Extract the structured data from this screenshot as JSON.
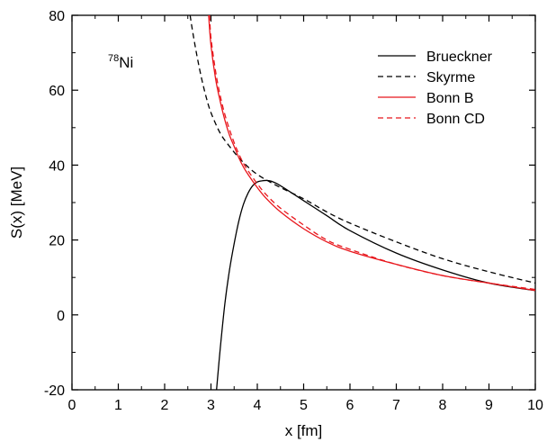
{
  "chart_data": {
    "type": "line",
    "title": "",
    "annotation": {
      "nucleus_mass": "78",
      "nucleus_symbol": "Ni"
    },
    "xlabel": "x [fm]",
    "ylabel": "S(x) [MeV]",
    "xlim": [
      0,
      10
    ],
    "ylim": [
      -20,
      80
    ],
    "xticks": [
      0,
      1,
      2,
      3,
      4,
      5,
      6,
      7,
      8,
      9,
      10
    ],
    "yticks": [
      -20,
      0,
      20,
      40,
      60,
      80
    ],
    "grid": false,
    "legend_position": "top-right",
    "series": [
      {
        "name": "Brueckner",
        "color": "#000000",
        "dash": "solid",
        "x": [
          3.12,
          3.2,
          3.3,
          3.4,
          3.5,
          3.6,
          3.7,
          3.8,
          3.9,
          4.0,
          4.1,
          4.2,
          4.3,
          4.5,
          5.0,
          5.5,
          6.0,
          7.0,
          8.0,
          9.0,
          10.0
        ],
        "y": [
          -20,
          -9,
          3,
          12,
          19,
          25,
          29.5,
          32.5,
          34.5,
          35.5,
          35.8,
          35.9,
          35.7,
          34.5,
          30.5,
          26.5,
          22.5,
          16.5,
          12,
          8.5,
          6.5
        ]
      },
      {
        "name": "Skyrme",
        "color": "#000000",
        "dash": "dashed",
        "x": [
          2.55,
          2.6,
          2.7,
          2.8,
          2.9,
          3.0,
          3.2,
          3.4,
          3.6,
          3.8,
          4.0,
          4.2,
          4.5,
          5.0,
          5.5,
          6.0,
          7.0,
          8.0,
          9.0,
          10.0
        ],
        "y": [
          80,
          76,
          69,
          63,
          58,
          54,
          48.5,
          45,
          42,
          39.5,
          37.5,
          36,
          34,
          31,
          27.5,
          24.5,
          19.5,
          15,
          11.5,
          8.5
        ]
      },
      {
        "name": "Bonn B",
        "color": "#e8161c",
        "dash": "solid",
        "x": [
          2.95,
          3.0,
          3.1,
          3.2,
          3.3,
          3.4,
          3.5,
          3.6,
          3.7,
          3.8,
          4.0,
          4.2,
          4.5,
          5.0,
          5.5,
          6.0,
          7.0,
          8.0,
          9.0,
          10.0
        ],
        "y": [
          80,
          72,
          63,
          57,
          52,
          48,
          45,
          42,
          39.5,
          37.5,
          34,
          31,
          27.5,
          23,
          19.5,
          17,
          13.5,
          10.5,
          8.5,
          6.5
        ]
      },
      {
        "name": "Bonn CD",
        "color": "#e8161c",
        "dash": "dashed",
        "x": [
          2.97,
          3.0,
          3.1,
          3.2,
          3.3,
          3.4,
          3.5,
          3.6,
          3.7,
          3.8,
          4.0,
          4.2,
          4.5,
          5.0,
          5.5,
          6.0,
          7.0,
          8.0,
          9.0,
          10.0
        ],
        "y": [
          80,
          74,
          65,
          58.5,
          53.5,
          49.5,
          46,
          43,
          40.5,
          38.5,
          35,
          32,
          28.5,
          24,
          20,
          17.5,
          13.5,
          10.5,
          8.5,
          6.8
        ]
      }
    ]
  }
}
